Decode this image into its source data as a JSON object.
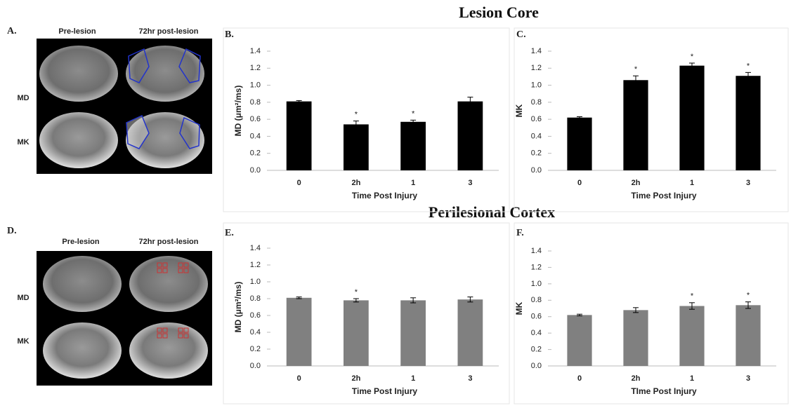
{
  "headings": [
    "Lesion Core",
    "Perilesional Cortex"
  ],
  "panels": [
    {
      "label": "A.",
      "columns": [
        "Pre-lesion",
        "72hr post-lesion"
      ],
      "rows": [
        "MD",
        "MK"
      ]
    },
    {
      "label": "D.",
      "columns": [
        "Pre-lesion",
        "72hr post-lesion"
      ],
      "rows": [
        "MD",
        "MK"
      ]
    }
  ],
  "chart_data": [
    {
      "type": "bar",
      "panel": "B.",
      "ylabel": "MD (μm²/ms)",
      "xlabel": "Time Post Injury",
      "categories": [
        "0",
        "2h",
        "1",
        "3"
      ],
      "values": [
        0.81,
        0.54,
        0.57,
        0.81
      ],
      "errors": [
        0.01,
        0.04,
        0.02,
        0.05
      ],
      "significance": [
        null,
        "*",
        "*",
        null
      ],
      "color": "#000000",
      "ylim": [
        0,
        1.4
      ],
      "yticks": [
        {
          "value": 0,
          "label": "0.0"
        },
        0.2,
        0.4,
        0.6,
        0.8,
        {
          "value": 1,
          "label": "1.0"
        },
        1.2,
        1.4
      ]
    },
    {
      "type": "bar",
      "panel": "C.",
      "ylabel": "MK",
      "xlabel": "Time Post Injury",
      "categories": [
        "0",
        "2h",
        "1",
        "3"
      ],
      "values": [
        0.62,
        1.06,
        1.23,
        1.11
      ],
      "errors": [
        0.01,
        0.05,
        0.03,
        0.04
      ],
      "significance": [
        null,
        "*",
        "*",
        "*"
      ],
      "color": "#000000",
      "ylim": [
        0,
        1.4
      ],
      "yticks": [
        {
          "value": 0,
          "label": "0.0"
        },
        0.2,
        0.4,
        0.6,
        0.8,
        {
          "value": 1,
          "label": "1.0"
        },
        1.2,
        1.4
      ]
    },
    {
      "type": "bar",
      "panel": "E.",
      "ylabel": "MD (μm²/ms)",
      "xlabel": "Time Post Injury",
      "categories": [
        "0",
        "2h",
        "1",
        "3"
      ],
      "values": [
        0.81,
        0.78,
        0.78,
        0.79
      ],
      "errors": [
        0.01,
        0.02,
        0.03,
        0.03
      ],
      "significance": [
        null,
        "*",
        null,
        null
      ],
      "color": "#808080",
      "ylim": [
        0,
        1.4
      ],
      "yticks": [
        {
          "value": 0,
          "label": "0.0"
        },
        0.2,
        0.4,
        0.6,
        0.8,
        {
          "value": 1,
          "label": "1.0"
        },
        1.2,
        1.4
      ]
    },
    {
      "type": "bar",
      "panel": "F.",
      "ylabel": "MK",
      "xlabel": "TIme Post Injury",
      "categories": [
        "0",
        "2h",
        "1",
        "3"
      ],
      "values": [
        0.62,
        0.68,
        0.73,
        0.74
      ],
      "errors": [
        0.01,
        0.03,
        0.04,
        0.04
      ],
      "significance": [
        null,
        null,
        "*",
        "*"
      ],
      "color": "#808080",
      "ylim": [
        0,
        1.4
      ],
      "yticks": [
        {
          "value": 0,
          "label": "0.0"
        },
        0.2,
        0.4,
        0.6,
        0.8,
        {
          "value": 1,
          "label": "1.0"
        },
        1.2,
        1.4
      ]
    }
  ]
}
